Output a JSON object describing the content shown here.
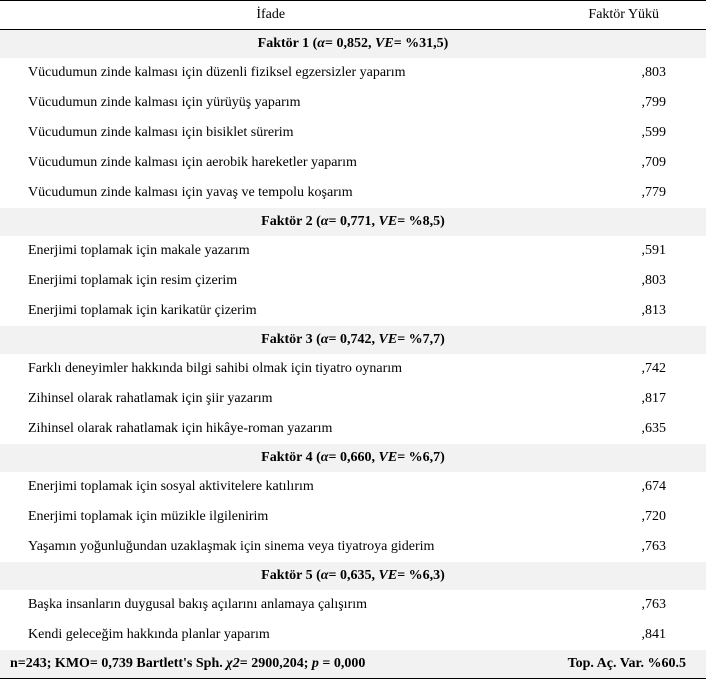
{
  "header": {
    "ifade": "İfade",
    "faktor_yuku": "Faktör Yükü"
  },
  "factors": [
    {
      "title_prefix": "Faktör 1 (",
      "alpha_sym": "α",
      "alpha_val": "= 0,852, ",
      "ve_sym": "VE",
      "ve_val": "= %31,5)",
      "items": [
        {
          "text": "Vücudumun zinde kalması için düzenli fiziksel egzersizler yaparım",
          "val": ",803"
        },
        {
          "text": "Vücudumun zinde kalması için yürüyüş yaparım",
          "val": ",799"
        },
        {
          "text": "Vücudumun zinde kalması için bisiklet sürerim",
          "val": ",599"
        },
        {
          "text": "Vücudumun zinde kalması için aerobik hareketler yaparım",
          "val": ",709"
        },
        {
          "text": "Vücudumun zinde kalması için yavaş ve tempolu koşarım",
          "val": ",779"
        }
      ]
    },
    {
      "title_prefix": "Faktör 2 (",
      "alpha_sym": "α",
      "alpha_val": "= 0,771, ",
      "ve_sym": "VE",
      "ve_val": "= %8,5)",
      "items": [
        {
          "text": "Enerjimi toplamak için makale yazarım",
          "val": ",591"
        },
        {
          "text": "Enerjimi toplamak için resim çizerim",
          "val": ",803"
        },
        {
          "text": "Enerjimi toplamak için karikatür çizerim",
          "val": ",813"
        }
      ]
    },
    {
      "title_prefix": "Faktör 3 (",
      "alpha_sym": "α",
      "alpha_val": "= 0,742, ",
      "ve_sym": "VE",
      "ve_val": "= %7,7)",
      "items": [
        {
          "text": "Farklı deneyimler hakkında bilgi sahibi olmak için tiyatro oynarım",
          "val": ",742"
        },
        {
          "text": "Zihinsel olarak rahatlamak için şiir yazarım",
          "val": ",817"
        },
        {
          "text": "Zihinsel olarak rahatlamak için hikâye-roman yazarım",
          "val": ",635"
        }
      ]
    },
    {
      "title_prefix": "Faktör 4 (",
      "alpha_sym": "α",
      "alpha_val": "= 0,660, ",
      "ve_sym": "VE",
      "ve_val": "= %6,7)",
      "items": [
        {
          "text": "Enerjimi toplamak için sosyal aktivitelere katılırım",
          "val": ",674"
        },
        {
          "text": "Enerjimi toplamak için müzikle ilgilenirim",
          "val": ",720"
        },
        {
          "text": "Yaşamın yoğunluğundan uzaklaşmak için sinema veya tiyatroya giderim",
          "val": ",763"
        }
      ]
    },
    {
      "title_prefix": "Faktör 5 (",
      "alpha_sym": "α",
      "alpha_val": "= 0,635, ",
      "ve_sym": "VE",
      "ve_val": "= %6,3)",
      "items": [
        {
          "text": "Başka insanların duygusal bakış açılarını anlamaya çalışırım",
          "val": ",763"
        },
        {
          "text": "Kendi geleceğim hakkında planlar yaparım",
          "val": ",841"
        }
      ]
    }
  ],
  "footer": {
    "left_a": "n=243; KMO= 0,739 Bartlett's Sph. ",
    "chi_sym": "χ2",
    "left_b": "= 2900,204; ",
    "p_sym": "p",
    "left_c": " = 0,000",
    "right": "Top. Aç. Var. %60.5"
  }
}
